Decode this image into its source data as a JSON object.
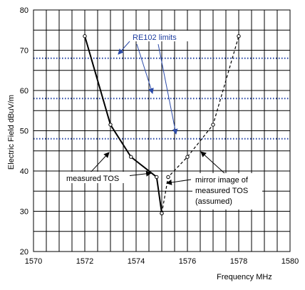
{
  "chart_data": {
    "type": "line",
    "xlabel": "Frequency MHz",
    "ylabel": "Electric Field dBuV/m",
    "xlim": [
      1570,
      1580
    ],
    "ylim": [
      20,
      80
    ],
    "x_ticks": [
      1570,
      1572,
      1574,
      1576,
      1578,
      1580
    ],
    "y_ticks": [
      20,
      30,
      40,
      50,
      60,
      70,
      80
    ],
    "grid": true,
    "colors": {
      "grid": "#000000",
      "limit": "#1f3fa0",
      "series": "#000000",
      "annotation_arrow": "#2b4aa8",
      "background": "#ffffff"
    },
    "series": [
      {
        "name": "measured TOS",
        "style": "solid",
        "points": [
          [
            1572.0,
            73.5
          ],
          [
            1573.0,
            51.5
          ],
          [
            1573.8,
            43.5
          ],
          [
            1574.8,
            38.5
          ],
          [
            1575.0,
            29.5
          ]
        ]
      },
      {
        "name": "mirror image of measured TOS (assumed)",
        "style": "dashed",
        "points": [
          [
            1575.0,
            29.5
          ],
          [
            1575.25,
            38.5
          ],
          [
            1576.0,
            43.5
          ],
          [
            1577.0,
            51.5
          ],
          [
            1578.0,
            73.5
          ]
        ]
      }
    ],
    "limit_lines": [
      {
        "y": 68
      },
      {
        "y": 58
      },
      {
        "y": 48
      }
    ],
    "annotations": {
      "limits_label": "RE102 limits",
      "measured_label": "measured TOS",
      "mirror_label_lines": [
        "mirror image of",
        "measured TOS",
        "(assumed)"
      ]
    }
  }
}
